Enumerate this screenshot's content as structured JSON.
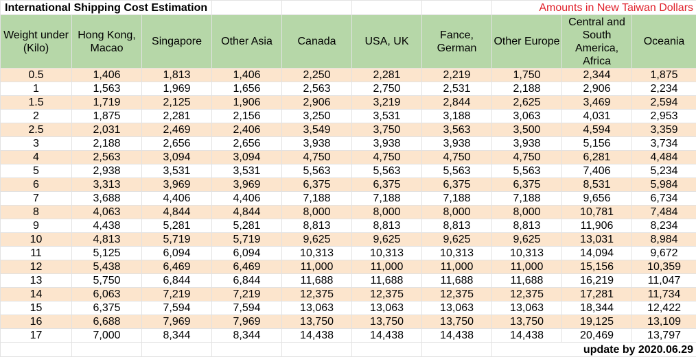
{
  "title": "International Shipping Cost Estimation",
  "subtitle": "Amounts in New Taiwan Dollars",
  "footer": "update by 2020.06.29",
  "colors": {
    "header_bg": "#b6d7a8",
    "band_bg": "#fce5cd",
    "subtitle_color": "#e0202a"
  },
  "columns": [
    "Weight under (Kilo)",
    "Hong Kong, Macao",
    "Singapore",
    "Other Asia",
    "Canada",
    "USA, UK",
    "Fance, German",
    "Other Europe",
    "Central and South America, Africa",
    "Oceania"
  ],
  "rows": [
    [
      "0.5",
      "1,406",
      "1,813",
      "1,406",
      "2,250",
      "2,281",
      "2,219",
      "1,750",
      "2,344",
      "1,875"
    ],
    [
      "1",
      "1,563",
      "1,969",
      "1,656",
      "2,563",
      "2,750",
      "2,531",
      "2,188",
      "2,906",
      "2,234"
    ],
    [
      "1.5",
      "1,719",
      "2,125",
      "1,906",
      "2,906",
      "3,219",
      "2,844",
      "2,625",
      "3,469",
      "2,594"
    ],
    [
      "2",
      "1,875",
      "2,281",
      "2,156",
      "3,250",
      "3,531",
      "3,188",
      "3,063",
      "4,031",
      "2,953"
    ],
    [
      "2.5",
      "2,031",
      "2,469",
      "2,406",
      "3,549",
      "3,750",
      "3,563",
      "3,500",
      "4,594",
      "3,359"
    ],
    [
      "3",
      "2,188",
      "2,656",
      "2,656",
      "3,938",
      "3,938",
      "3,938",
      "3,938",
      "5,156",
      "3,734"
    ],
    [
      "4",
      "2,563",
      "3,094",
      "3,094",
      "4,750",
      "4,750",
      "4,750",
      "4,750",
      "6,281",
      "4,484"
    ],
    [
      "5",
      "2,938",
      "3,531",
      "3,531",
      "5,563",
      "5,563",
      "5,563",
      "5,563",
      "7,406",
      "5,234"
    ],
    [
      "6",
      "3,313",
      "3,969",
      "3,969",
      "6,375",
      "6,375",
      "6,375",
      "6,375",
      "8,531",
      "5,984"
    ],
    [
      "7",
      "3,688",
      "4,406",
      "4,406",
      "7,188",
      "7,188",
      "7,188",
      "7,188",
      "9,656",
      "6,734"
    ],
    [
      "8",
      "4,063",
      "4,844",
      "4,844",
      "8,000",
      "8,000",
      "8,000",
      "8,000",
      "10,781",
      "7,484"
    ],
    [
      "9",
      "4,438",
      "5,281",
      "5,281",
      "8,813",
      "8,813",
      "8,813",
      "8,813",
      "11,906",
      "8,234"
    ],
    [
      "10",
      "4,813",
      "5,719",
      "5,719",
      "9,625",
      "9,625",
      "9,625",
      "9,625",
      "13,031",
      "8,984"
    ],
    [
      "11",
      "5,125",
      "6,094",
      "6,094",
      "10,313",
      "10,313",
      "10,313",
      "10,313",
      "14,094",
      "9,672"
    ],
    [
      "12",
      "5,438",
      "6,469",
      "6,469",
      "11,000",
      "11,000",
      "11,000",
      "11,000",
      "15,156",
      "10,359"
    ],
    [
      "13",
      "5,750",
      "6,844",
      "6,844",
      "11,688",
      "11,688",
      "11,688",
      "11,688",
      "16,219",
      "11,047"
    ],
    [
      "14",
      "6,063",
      "7,219",
      "7,219",
      "12,375",
      "12,375",
      "12,375",
      "12,375",
      "17,281",
      "11,734"
    ],
    [
      "15",
      "6,375",
      "7,594",
      "7,594",
      "13,063",
      "13,063",
      "13,063",
      "13,063",
      "18,344",
      "12,422"
    ],
    [
      "16",
      "6,688",
      "7,969",
      "7,969",
      "13,750",
      "13,750",
      "13,750",
      "13,750",
      "19,125",
      "13,109"
    ],
    [
      "17",
      "7,000",
      "8,344",
      "8,344",
      "14,438",
      "14,438",
      "14,438",
      "14,438",
      "20,469",
      "13,797"
    ]
  ]
}
